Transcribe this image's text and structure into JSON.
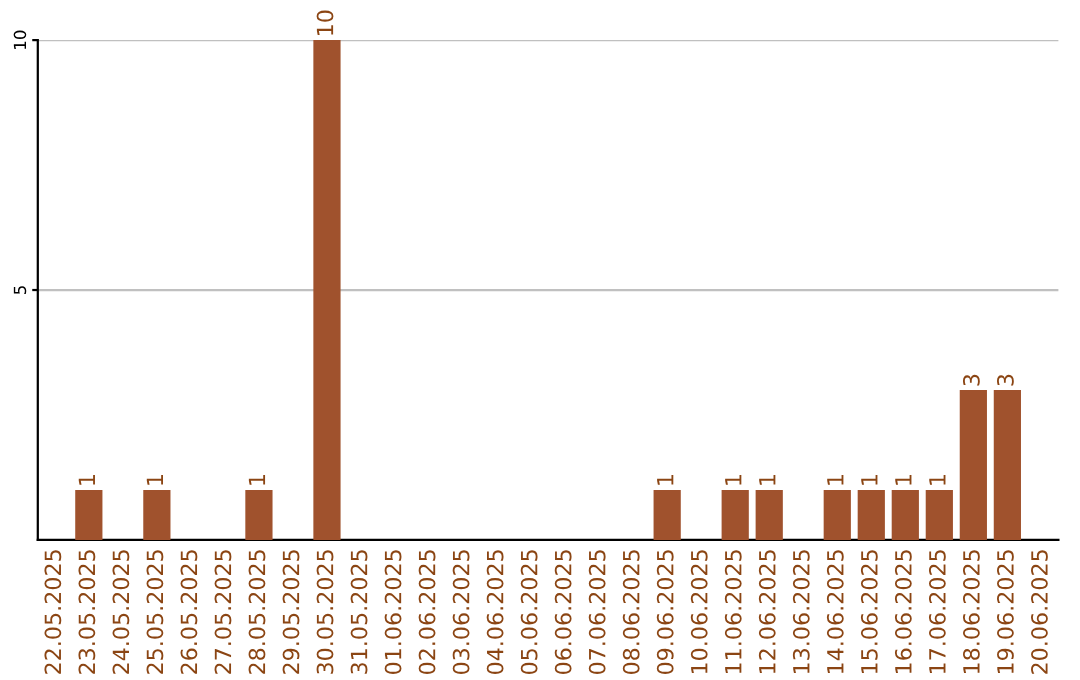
{
  "chart_data": {
    "type": "bar",
    "categories": [
      "22.05.2025",
      "23.05.2025",
      "24.05.2025",
      "25.05.2025",
      "26.05.2025",
      "27.05.2025",
      "28.05.2025",
      "29.05.2025",
      "30.05.2025",
      "31.05.2025",
      "01.06.2025",
      "02.06.2025",
      "03.06.2025",
      "04.06.2025",
      "05.06.2025",
      "06.06.2025",
      "07.06.2025",
      "08.06.2025",
      "09.06.2025",
      "10.06.2025",
      "11.06.2025",
      "12.06.2025",
      "13.06.2025",
      "14.06.2025",
      "15.06.2025",
      "16.06.2025",
      "17.06.2025",
      "18.06.2025",
      "19.06.2025",
      "20.06.2025"
    ],
    "values": [
      0,
      1,
      0,
      1,
      0,
      0,
      1,
      0,
      10,
      0,
      0,
      0,
      0,
      0,
      0,
      0,
      0,
      0,
      1,
      0,
      1,
      1,
      0,
      1,
      1,
      1,
      1,
      3,
      3,
      0
    ],
    "value_labels": [
      null,
      "1",
      null,
      "1",
      null,
      null,
      "1",
      null,
      "10",
      null,
      null,
      null,
      null,
      null,
      null,
      null,
      null,
      null,
      "1",
      null,
      "1",
      "1",
      null,
      "1",
      "1",
      "1",
      "1",
      "3",
      "3",
      null
    ],
    "color": "#a0522d",
    "ylim": [
      0,
      10
    ],
    "yticks": [
      5,
      10
    ],
    "grid": "y"
  }
}
